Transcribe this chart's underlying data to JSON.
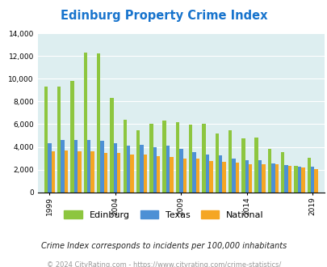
{
  "title": "Edinburg Property Crime Index",
  "title_color": "#1874CD",
  "years": [
    1999,
    2000,
    2001,
    2002,
    2003,
    2004,
    2005,
    2006,
    2007,
    2008,
    2009,
    2010,
    2011,
    2012,
    2013,
    2014,
    2015,
    2016,
    2017,
    2018,
    2019,
    2020
  ],
  "edinburg": [
    9300,
    9300,
    9800,
    12300,
    12200,
    8300,
    6400,
    5450,
    6050,
    6350,
    6200,
    5950,
    6000,
    5200,
    5450,
    4750,
    4850,
    3800,
    3550,
    2300,
    3050,
    null
  ],
  "texas": [
    4350,
    4600,
    4600,
    4600,
    4550,
    4350,
    4100,
    4200,
    4000,
    4100,
    3850,
    3550,
    3350,
    3250,
    3000,
    2800,
    2850,
    2550,
    2400,
    2250,
    2250,
    null
  ],
  "national": [
    3600,
    3700,
    3600,
    3600,
    3500,
    3450,
    3350,
    3300,
    3200,
    3100,
    3000,
    2950,
    2750,
    2650,
    2600,
    2500,
    2470,
    2450,
    2360,
    2200,
    2050,
    null
  ],
  "color_edinburg": "#8dc63f",
  "color_texas": "#4d90d5",
  "color_national": "#f5a623",
  "plot_bg": "#ddeef0",
  "ylim": [
    0,
    14000
  ],
  "yticks": [
    0,
    2000,
    4000,
    6000,
    8000,
    10000,
    12000,
    14000
  ],
  "xtick_labels": [
    "1999",
    "2004",
    "2009",
    "2014",
    "2019"
  ],
  "xtick_positions": [
    0,
    5,
    10,
    15,
    20
  ],
  "note": "Crime Index corresponds to incidents per 100,000 inhabitants",
  "copyright": "© 2024 CityRating.com - https://www.cityrating.com/crime-statistics/",
  "note_color": "#222222",
  "copyright_color": "#999999",
  "legend_labels": [
    "Edinburg",
    "Texas",
    "National"
  ],
  "bar_width": 0.27,
  "grid_color": "#ffffff"
}
